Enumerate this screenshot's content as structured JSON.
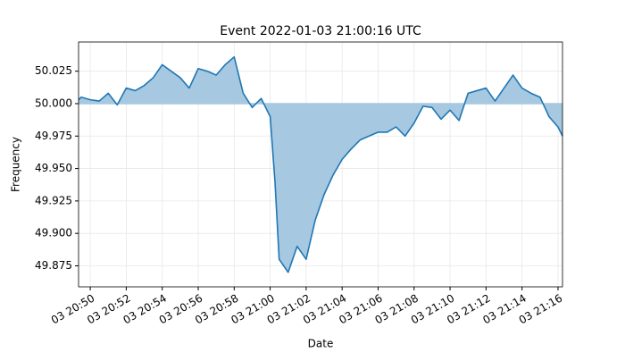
{
  "chart_data": {
    "type": "line",
    "title": "Event 2022-01-03 21:00:16 UTC",
    "x_label": "Date",
    "y_label": "Frequency",
    "x": [
      "03 20:49:21",
      "03 20:49:30",
      "03 20:50:00",
      "03 20:50:30",
      "03 20:51:00",
      "03 20:51:30",
      "03 20:52:00",
      "03 20:52:30",
      "03 20:53:00",
      "03 20:53:30",
      "03 20:54:00",
      "03 20:54:30",
      "03 20:55:00",
      "03 20:55:30",
      "03 20:56:00",
      "03 20:56:30",
      "03 20:57:00",
      "03 20:57:30",
      "03 20:58:00",
      "03 20:58:30",
      "03 20:59:00",
      "03 20:59:30",
      "03 21:00:00",
      "03 21:00:16",
      "03 21:00:30",
      "03 21:01:00",
      "03 21:01:30",
      "03 21:02:00",
      "03 21:02:30",
      "03 21:03:00",
      "03 21:03:30",
      "03 21:04:00",
      "03 21:04:30",
      "03 21:05:00",
      "03 21:05:30",
      "03 21:06:00",
      "03 21:06:30",
      "03 21:07:00",
      "03 21:07:30",
      "03 21:08:00",
      "03 21:08:30",
      "03 21:09:00",
      "03 21:09:30",
      "03 21:10:00",
      "03 21:10:30",
      "03 21:11:00",
      "03 21:11:30",
      "03 21:12:00",
      "03 21:12:30",
      "03 21:13:00",
      "03 21:13:30",
      "03 21:14:00",
      "03 21:14:30",
      "03 21:15:00",
      "03 21:15:30",
      "03 21:16:00",
      "03 21:16:15"
    ],
    "series": [
      {
        "color": "#1f77b4",
        "fill_color": "#a6c8e1",
        "baseline": 50.0,
        "values": [
          50.003,
          50.005,
          50.003,
          50.002,
          50.008,
          49.999,
          50.012,
          50.01,
          50.014,
          50.02,
          50.03,
          50.025,
          50.02,
          50.012,
          50.027,
          50.025,
          50.022,
          50.03,
          50.036,
          50.008,
          49.997,
          50.004,
          49.99,
          49.94,
          49.88,
          49.87,
          49.89,
          49.88,
          49.91,
          49.93,
          49.945,
          49.957,
          49.965,
          49.972,
          49.975,
          49.978,
          49.978,
          49.982,
          49.975,
          49.985,
          49.998,
          49.997,
          49.988,
          49.995,
          49.987,
          50.008,
          50.01,
          50.012,
          50.002,
          50.012,
          50.022,
          50.012,
          50.008,
          50.005,
          49.99,
          49.982,
          49.975
        ]
      }
    ],
    "xlim": [
      "03 20:49:21",
      "03 21:16:15"
    ],
    "xticks": [
      {
        "value": "03 20:50:00",
        "label": "03 20:50"
      },
      {
        "value": "03 20:52:00",
        "label": "03 20:52"
      },
      {
        "value": "03 20:54:00",
        "label": "03 20:54"
      },
      {
        "value": "03 20:56:00",
        "label": "03 20:56"
      },
      {
        "value": "03 20:58:00",
        "label": "03 20:58"
      },
      {
        "value": "03 21:00:00",
        "label": "03 21:00"
      },
      {
        "value": "03 21:02:00",
        "label": "03 21:02"
      },
      {
        "value": "03 21:04:00",
        "label": "03 21:04"
      },
      {
        "value": "03 21:06:00",
        "label": "03 21:06"
      },
      {
        "value": "03 21:08:00",
        "label": "03 21:08"
      },
      {
        "value": "03 21:10:00",
        "label": "03 21:10"
      },
      {
        "value": "03 21:12:00",
        "label": "03 21:12"
      },
      {
        "value": "03 21:14:00",
        "label": "03 21:14"
      },
      {
        "value": "03 21:16:00",
        "label": "03 21:16"
      }
    ],
    "ylim": [
      49.8588,
      50.0475
    ],
    "yticks": [
      {
        "value": 49.875,
        "label": "49.875"
      },
      {
        "value": 49.9,
        "label": "49.900"
      },
      {
        "value": 49.925,
        "label": "49.925"
      },
      {
        "value": 49.95,
        "label": "49.950"
      },
      {
        "value": 49.975,
        "label": "49.975"
      },
      {
        "value": 50.0,
        "label": "50.000"
      },
      {
        "value": 50.025,
        "label": "50.025"
      }
    ],
    "grid": true
  }
}
